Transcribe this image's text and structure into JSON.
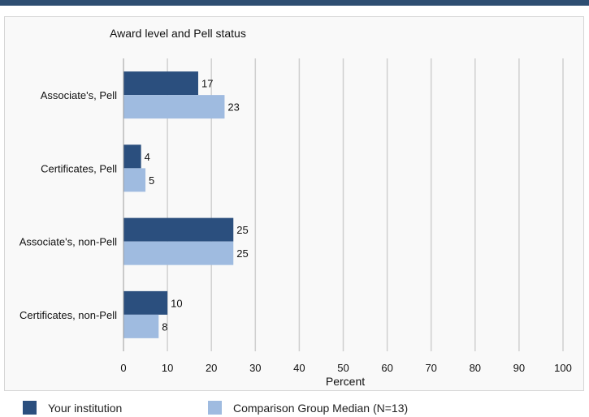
{
  "chart_data": {
    "type": "bar",
    "orientation": "horizontal",
    "title": "Award level and Pell status",
    "xlabel": "Percent",
    "ylabel": "",
    "xlim": [
      0,
      100
    ],
    "xticks": [
      0,
      10,
      20,
      30,
      40,
      50,
      60,
      70,
      80,
      90,
      100
    ],
    "grid": true,
    "legend_position": "bottom",
    "categories": [
      "Associate's, Pell",
      "Certificates, Pell",
      "Associate's, non-Pell",
      "Certificates, non-Pell"
    ],
    "series": [
      {
        "name": "Your institution",
        "color": "#2b4f7e",
        "values": [
          17,
          4,
          25,
          10
        ]
      },
      {
        "name": "Comparison Group Median (N=13)",
        "color": "#9fbbe0",
        "values": [
          23,
          5,
          25,
          8
        ]
      }
    ]
  }
}
